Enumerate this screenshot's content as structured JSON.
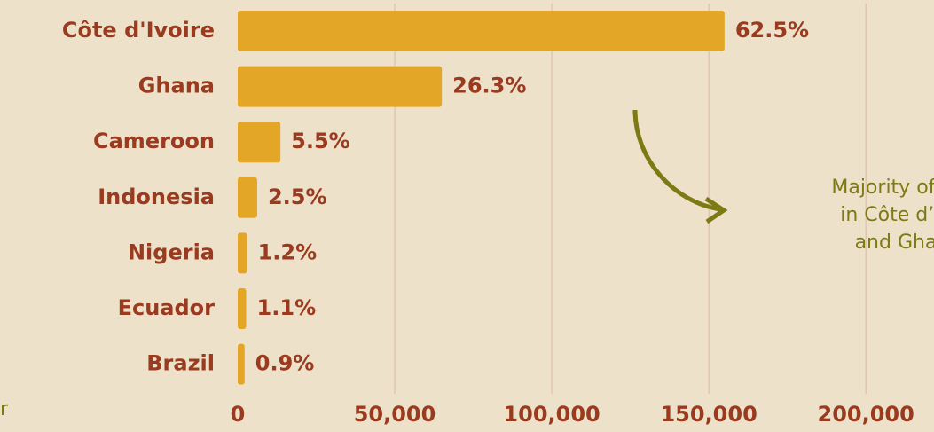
{
  "chart_data": {
    "type": "bar",
    "orientation": "horizontal",
    "categories": [
      "Côte d'Ivoire",
      "Ghana",
      "Cameroon",
      "Indonesia",
      "Nigeria",
      "Ecuador",
      "Brazil"
    ],
    "values": [
      155000,
      65000,
      13600,
      6200,
      3000,
      2700,
      2200
    ],
    "share_labels": [
      "62.5%",
      "26.3%",
      "5.5%",
      "2.5%",
      "1.2%",
      "1.1%",
      "0.9%"
    ],
    "color": "#e3a627",
    "xlim": [
      0,
      220000
    ],
    "xticks": [
      0,
      {
        "value": 50000,
        "label": "50,000"
      },
      {
        "value": 100000,
        "label": "100,000"
      },
      {
        "value": 150000,
        "label": "150,000"
      },
      {
        "value": 200000,
        "label": "200,000"
      }
    ],
    "grid": true,
    "annotation": [
      "Majority of fa",
      "in Côte d’Iv",
      "and Gha"
    ],
    "side_text": "r"
  }
}
